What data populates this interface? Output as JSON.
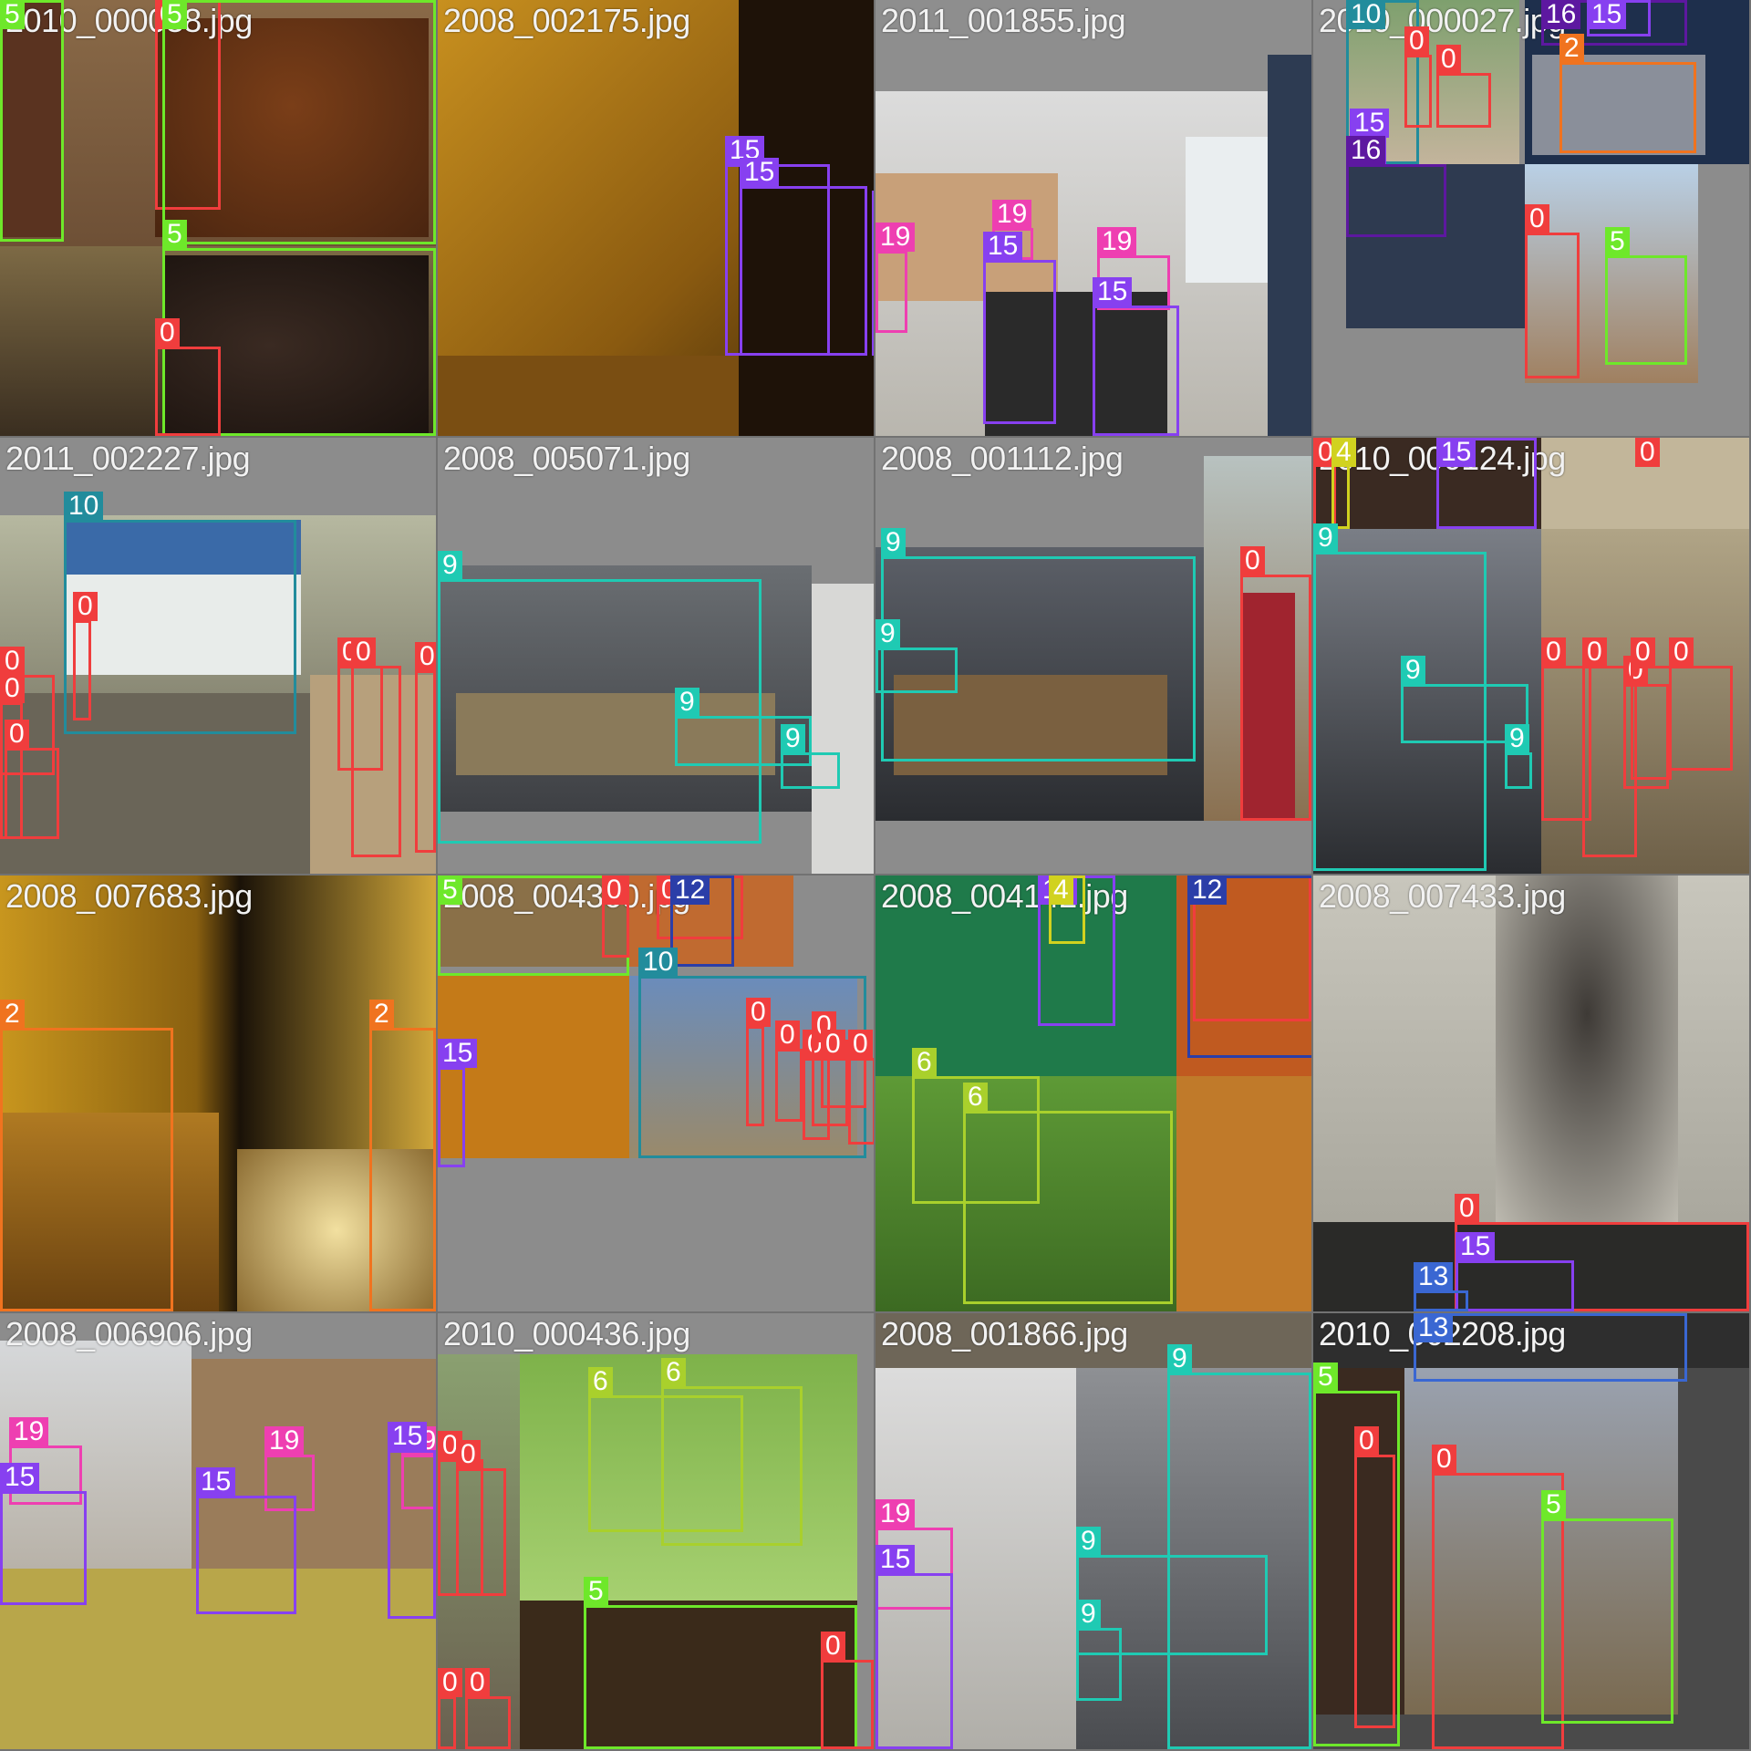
{
  "image_title": "",
  "tiles": [
    {
      "file": "2010_000038.jpg"
    },
    {
      "file": "2008_002175.jpg"
    },
    {
      "file": "2011_001855.jpg"
    },
    {
      "file": "2010_000027.jpg"
    },
    {
      "file": "2011_002227.jpg"
    },
    {
      "file": "2008_005071.jpg"
    },
    {
      "file": "2008_001112.jpg"
    },
    {
      "file": "2010_000124.jpg"
    },
    {
      "file": "2008_007683.jpg"
    },
    {
      "file": "2008_004360.jpg"
    },
    {
      "file": "2008_004142.jpg"
    },
    {
      "file": "2008_007433.jpg"
    },
    {
      "file": "2008_006906.jpg"
    },
    {
      "file": "2010_000436.jpg"
    },
    {
      "file": "2008_001866.jpg"
    },
    {
      "file": "2010_002208.jpg"
    }
  ],
  "class_colors": {
    "0": "#f03d3d",
    "2": "#f0731f",
    "4": "#d1d21f",
    "5": "#6ee82a",
    "6": "#a9d02c",
    "9": "#1fcab3",
    "10": "#228c9c",
    "12": "#2b3ea8",
    "13": "#3a67d2",
    "15": "#8740f0",
    "16": "#5d18a0",
    "19": "#ee3fb1"
  }
}
